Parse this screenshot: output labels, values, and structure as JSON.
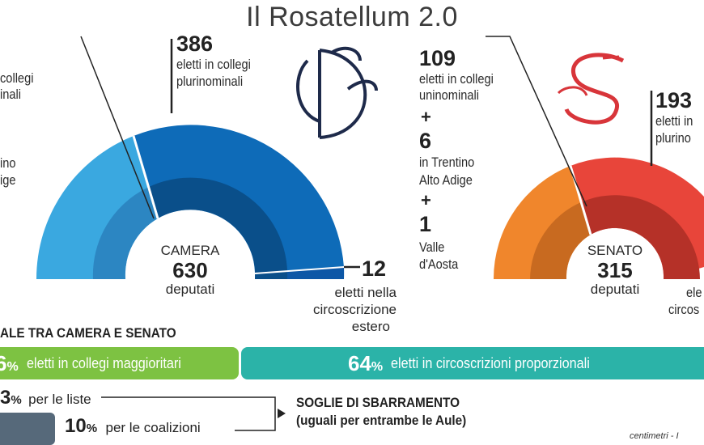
{
  "title": "Il Rosatellum 2.0",
  "camera": {
    "left_label_top": "collegi",
    "left_label_top2": "inali",
    "left_label_mid": "ino",
    "left_label_mid2": "ige",
    "plurinominali_num": "386",
    "plurinominali_l1": "eletti in collegi",
    "plurinominali_l2": "plurinominali",
    "center_cap": "CAMERA",
    "center_num": "630",
    "center_sub": "deputati",
    "estero_num": "12",
    "estero_l1": "eletti nella",
    "estero_l2": "circoscrizione",
    "estero_l3": "estero",
    "colors": {
      "light": "#3aa8e0",
      "dark": "#0e6bb8",
      "inner_light": "#2c86c2",
      "inner_dark": "#0a4f8a",
      "estero": "#0d57a6"
    }
  },
  "senato": {
    "uni_num": "109",
    "uni_l1": "eletti in collegi",
    "uni_l2": "uninominali",
    "plus1": "+",
    "trentino_num": "6",
    "trentino_l1": "in Trentino",
    "trentino_l2": "Alto Adige",
    "plus2": "+",
    "vda_num": "1",
    "vda_l1": "Valle",
    "vda_l2": "d'Aosta",
    "pluri_num": "193",
    "pluri_l1": "eletti in",
    "pluri_l2": "plurino",
    "center_cap": "SENATO",
    "center_num": "315",
    "center_sub": "deputati",
    "right_l1": "ele",
    "right_l2": "circos",
    "colors": {
      "light": "#f0862c",
      "dark": "#e8453a",
      "inner_light": "#c86a20",
      "inner_dark": "#b53128"
    }
  },
  "summary": {
    "heading": "ALE TRA CAMERA E SENATO",
    "green_pct": "6",
    "green_pct_unit": "%",
    "green_text": "eletti in collegi maggioritari",
    "teal_pct": "64",
    "teal_pct_unit": "%",
    "teal_text": "eletti in circoscrizioni proporzionali",
    "colors": {
      "green": "#7dc242",
      "teal": "#2bb3a8"
    }
  },
  "soglie": {
    "liste_pct": "3",
    "liste_unit": "%",
    "liste_text": "per le liste",
    "coal_pct": "10",
    "coal_unit": "%",
    "coal_text": "per le coalizioni",
    "heading_l1": "SOGLIE DI SBARRAMENTO",
    "heading_l2": "(uguali per entrambe le Aule)",
    "bar_color": "#56697a"
  },
  "credit": "centimetri - I"
}
